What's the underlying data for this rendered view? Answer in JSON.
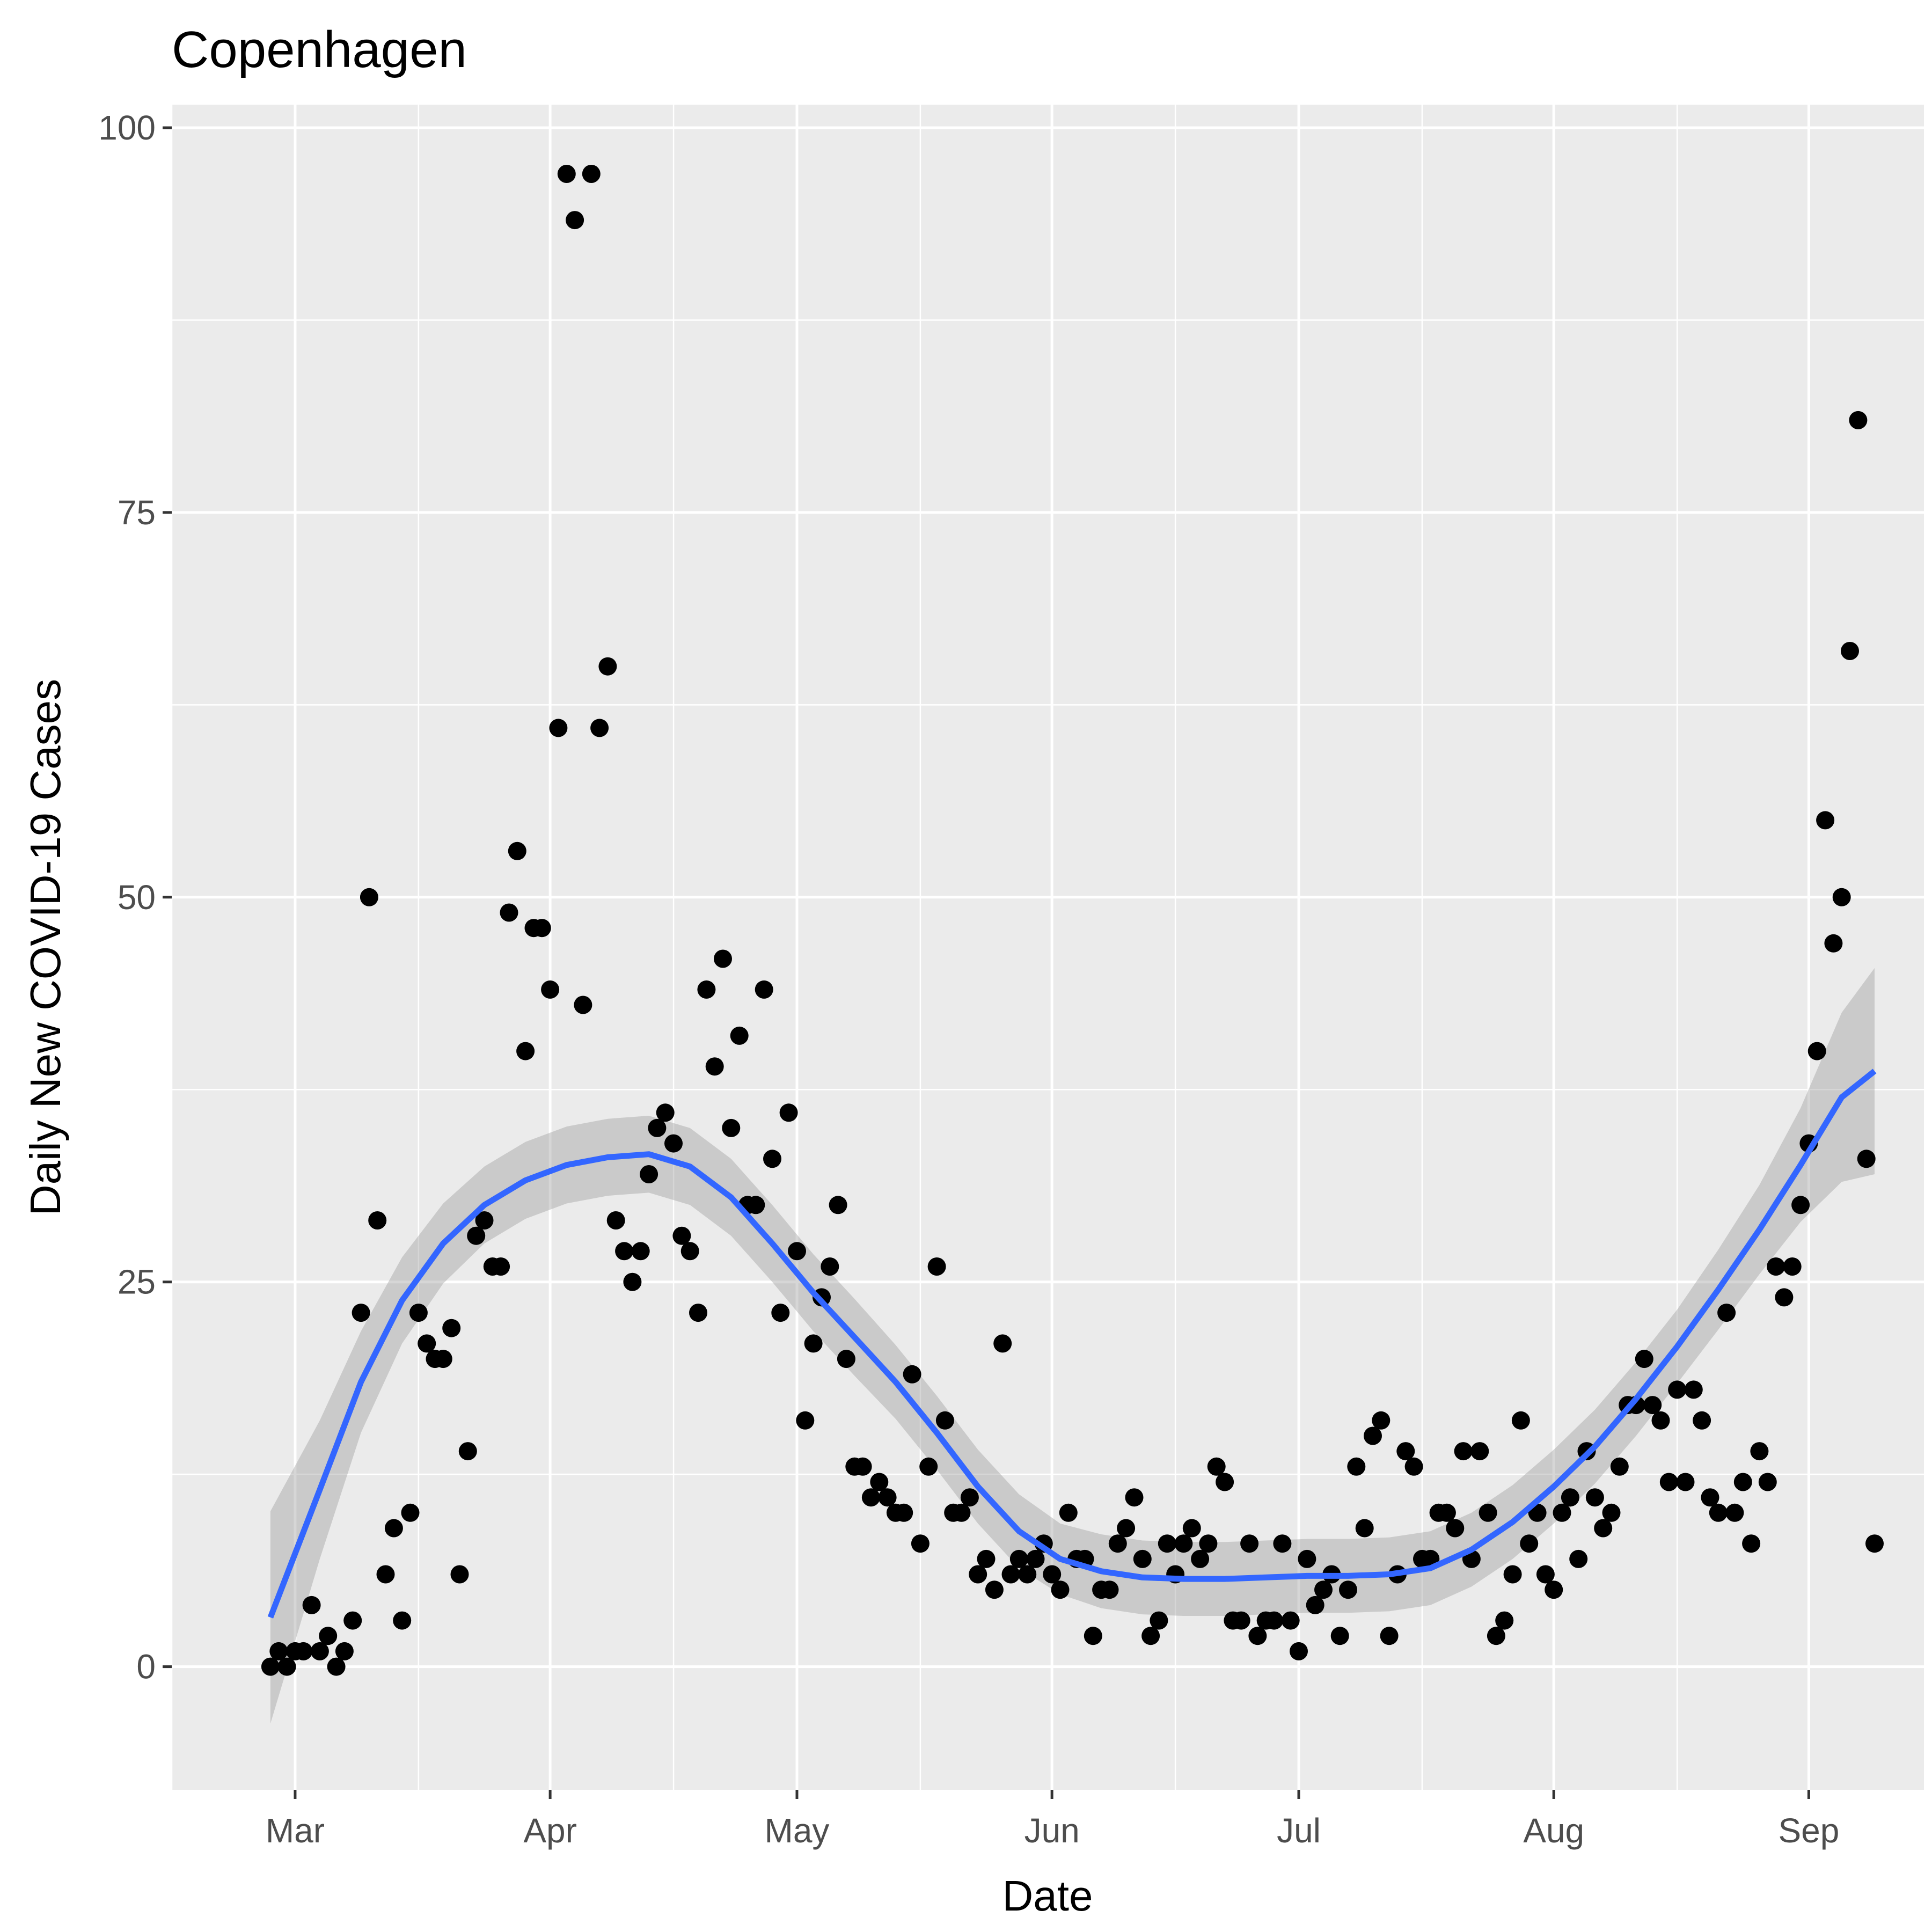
{
  "chart_data": {
    "type": "scatter",
    "title": "Copenhagen",
    "xlabel": "Date",
    "ylabel": "Daily New COVID-19 Cases",
    "grid": true,
    "legend": "none",
    "xlim": [
      "2020-02-15",
      "2020-09-15"
    ],
    "ylim": [
      -8,
      101.5
    ],
    "x_ticks": [
      {
        "date": "2020-03-01",
        "label": "Mar"
      },
      {
        "date": "2020-04-01",
        "label": "Apr"
      },
      {
        "date": "2020-05-01",
        "label": "May"
      },
      {
        "date": "2020-06-01",
        "label": "Jun"
      },
      {
        "date": "2020-07-01",
        "label": "Jul"
      },
      {
        "date": "2020-08-01",
        "label": "Aug"
      },
      {
        "date": "2020-09-01",
        "label": "Sep"
      }
    ],
    "x_minor_ticks": [
      "2020-02-15",
      "2020-03-16",
      "2020-04-16",
      "2020-05-16",
      "2020-06-16",
      "2020-07-16",
      "2020-08-16",
      "2020-09-16"
    ],
    "y_ticks": [
      {
        "value": 0,
        "label": "0"
      },
      {
        "value": 25,
        "label": "25"
      },
      {
        "value": 50,
        "label": "50"
      },
      {
        "value": 75,
        "label": "75"
      },
      {
        "value": 100,
        "label": "100"
      }
    ],
    "y_minor_ticks": [
      12.5,
      37.5,
      62.5,
      87.5
    ],
    "colors": {
      "points": "#000000",
      "smooth": "#3366ff",
      "ribbon": "#999999",
      "panel": "#ebebeb",
      "grid": "#ffffff"
    },
    "points": [
      [
        "2020-02-27",
        0
      ],
      [
        "2020-02-28",
        1
      ],
      [
        "2020-02-29",
        0
      ],
      [
        "2020-03-01",
        1
      ],
      [
        "2020-03-02",
        1
      ],
      [
        "2020-03-03",
        4
      ],
      [
        "2020-03-04",
        1
      ],
      [
        "2020-03-05",
        2
      ],
      [
        "2020-03-06",
        0
      ],
      [
        "2020-03-07",
        1
      ],
      [
        "2020-03-08",
        3
      ],
      [
        "2020-03-09",
        23
      ],
      [
        "2020-03-10",
        50
      ],
      [
        "2020-03-11",
        29
      ],
      [
        "2020-03-12",
        6
      ],
      [
        "2020-03-13",
        9
      ],
      [
        "2020-03-14",
        3
      ],
      [
        "2020-03-15",
        10
      ],
      [
        "2020-03-16",
        23
      ],
      [
        "2020-03-17",
        21
      ],
      [
        "2020-03-18",
        20
      ],
      [
        "2020-03-19",
        20
      ],
      [
        "2020-03-20",
        22
      ],
      [
        "2020-03-21",
        6
      ],
      [
        "2020-03-22",
        14
      ],
      [
        "2020-03-23",
        28
      ],
      [
        "2020-03-24",
        29
      ],
      [
        "2020-03-25",
        26
      ],
      [
        "2020-03-26",
        26
      ],
      [
        "2020-03-27",
        49
      ],
      [
        "2020-03-28",
        53
      ],
      [
        "2020-03-29",
        40
      ],
      [
        "2020-03-30",
        48
      ],
      [
        "2020-03-31",
        48
      ],
      [
        "2020-04-01",
        44
      ],
      [
        "2020-04-02",
        61
      ],
      [
        "2020-04-03",
        97
      ],
      [
        "2020-04-04",
        94
      ],
      [
        "2020-04-05",
        43
      ],
      [
        "2020-04-06",
        97
      ],
      [
        "2020-04-07",
        61
      ],
      [
        "2020-04-08",
        65
      ],
      [
        "2020-04-09",
        29
      ],
      [
        "2020-04-10",
        27
      ],
      [
        "2020-04-11",
        25
      ],
      [
        "2020-04-12",
        27
      ],
      [
        "2020-04-13",
        32
      ],
      [
        "2020-04-14",
        35
      ],
      [
        "2020-04-15",
        36
      ],
      [
        "2020-04-16",
        34
      ],
      [
        "2020-04-17",
        28
      ],
      [
        "2020-04-18",
        27
      ],
      [
        "2020-04-19",
        23
      ],
      [
        "2020-04-20",
        44
      ],
      [
        "2020-04-21",
        39
      ],
      [
        "2020-04-22",
        46
      ],
      [
        "2020-04-23",
        35
      ],
      [
        "2020-04-24",
        41
      ],
      [
        "2020-04-25",
        30
      ],
      [
        "2020-04-26",
        30
      ],
      [
        "2020-04-27",
        44
      ],
      [
        "2020-04-28",
        33
      ],
      [
        "2020-04-29",
        23
      ],
      [
        "2020-04-30",
        36
      ],
      [
        "2020-05-01",
        27
      ],
      [
        "2020-05-02",
        16
      ],
      [
        "2020-05-03",
        21
      ],
      [
        "2020-05-04",
        24
      ],
      [
        "2020-05-05",
        26
      ],
      [
        "2020-05-06",
        30
      ],
      [
        "2020-05-07",
        20
      ],
      [
        "2020-05-08",
        13
      ],
      [
        "2020-05-09",
        13
      ],
      [
        "2020-05-10",
        11
      ],
      [
        "2020-05-11",
        12
      ],
      [
        "2020-05-12",
        11
      ],
      [
        "2020-05-13",
        10
      ],
      [
        "2020-05-14",
        10
      ],
      [
        "2020-05-15",
        19
      ],
      [
        "2020-05-16",
        8
      ],
      [
        "2020-05-17",
        13
      ],
      [
        "2020-05-18",
        26
      ],
      [
        "2020-05-19",
        16
      ],
      [
        "2020-05-20",
        10
      ],
      [
        "2020-05-21",
        10
      ],
      [
        "2020-05-22",
        11
      ],
      [
        "2020-05-23",
        6
      ],
      [
        "2020-05-24",
        7
      ],
      [
        "2020-05-25",
        5
      ],
      [
        "2020-05-26",
        21
      ],
      [
        "2020-05-27",
        6
      ],
      [
        "2020-05-28",
        7
      ],
      [
        "2020-05-29",
        6
      ],
      [
        "2020-05-30",
        7
      ],
      [
        "2020-05-31",
        8
      ],
      [
        "2020-06-01",
        6
      ],
      [
        "2020-06-02",
        5
      ],
      [
        "2020-06-03",
        10
      ],
      [
        "2020-06-04",
        7
      ],
      [
        "2020-06-05",
        7
      ],
      [
        "2020-06-06",
        2
      ],
      [
        "2020-06-07",
        5
      ],
      [
        "2020-06-08",
        5
      ],
      [
        "2020-06-09",
        8
      ],
      [
        "2020-06-10",
        9
      ],
      [
        "2020-06-11",
        11
      ],
      [
        "2020-06-12",
        7
      ],
      [
        "2020-06-13",
        2
      ],
      [
        "2020-06-14",
        3
      ],
      [
        "2020-06-15",
        8
      ],
      [
        "2020-06-16",
        6
      ],
      [
        "2020-06-17",
        8
      ],
      [
        "2020-06-18",
        9
      ],
      [
        "2020-06-19",
        7
      ],
      [
        "2020-06-20",
        8
      ],
      [
        "2020-06-21",
        13
      ],
      [
        "2020-06-22",
        12
      ],
      [
        "2020-06-23",
        3
      ],
      [
        "2020-06-24",
        3
      ],
      [
        "2020-06-25",
        8
      ],
      [
        "2020-06-26",
        2
      ],
      [
        "2020-06-27",
        3
      ],
      [
        "2020-06-28",
        3
      ],
      [
        "2020-06-29",
        8
      ],
      [
        "2020-06-30",
        3
      ],
      [
        "2020-07-01",
        1
      ],
      [
        "2020-07-02",
        7
      ],
      [
        "2020-07-03",
        4
      ],
      [
        "2020-07-04",
        5
      ],
      [
        "2020-07-05",
        6
      ],
      [
        "2020-07-06",
        2
      ],
      [
        "2020-07-07",
        5
      ],
      [
        "2020-07-08",
        13
      ],
      [
        "2020-07-09",
        9
      ],
      [
        "2020-07-10",
        15
      ],
      [
        "2020-07-11",
        16
      ],
      [
        "2020-07-12",
        2
      ],
      [
        "2020-07-13",
        6
      ],
      [
        "2020-07-14",
        14
      ],
      [
        "2020-07-15",
        13
      ],
      [
        "2020-07-16",
        7
      ],
      [
        "2020-07-17",
        7
      ],
      [
        "2020-07-18",
        10
      ],
      [
        "2020-07-19",
        10
      ],
      [
        "2020-07-20",
        9
      ],
      [
        "2020-07-21",
        14
      ],
      [
        "2020-07-22",
        7
      ],
      [
        "2020-07-23",
        14
      ],
      [
        "2020-07-24",
        10
      ],
      [
        "2020-07-25",
        2
      ],
      [
        "2020-07-26",
        3
      ],
      [
        "2020-07-27",
        6
      ],
      [
        "2020-07-28",
        16
      ],
      [
        "2020-07-29",
        8
      ],
      [
        "2020-07-30",
        10
      ],
      [
        "2020-07-31",
        6
      ],
      [
        "2020-08-01",
        5
      ],
      [
        "2020-08-02",
        10
      ],
      [
        "2020-08-03",
        11
      ],
      [
        "2020-08-04",
        7
      ],
      [
        "2020-08-05",
        14
      ],
      [
        "2020-08-06",
        11
      ],
      [
        "2020-08-07",
        9
      ],
      [
        "2020-08-08",
        10
      ],
      [
        "2020-08-09",
        13
      ],
      [
        "2020-08-10",
        17
      ],
      [
        "2020-08-11",
        17
      ],
      [
        "2020-08-12",
        20
      ],
      [
        "2020-08-13",
        17
      ],
      [
        "2020-08-14",
        16
      ],
      [
        "2020-08-15",
        12
      ],
      [
        "2020-08-16",
        18
      ],
      [
        "2020-08-17",
        12
      ],
      [
        "2020-08-18",
        18
      ],
      [
        "2020-08-19",
        16
      ],
      [
        "2020-08-20",
        11
      ],
      [
        "2020-08-21",
        10
      ],
      [
        "2020-08-22",
        23
      ],
      [
        "2020-08-23",
        10
      ],
      [
        "2020-08-24",
        12
      ],
      [
        "2020-08-25",
        8
      ],
      [
        "2020-08-26",
        14
      ],
      [
        "2020-08-27",
        12
      ],
      [
        "2020-08-28",
        26
      ],
      [
        "2020-08-29",
        24
      ],
      [
        "2020-08-30",
        26
      ],
      [
        "2020-08-31",
        30
      ],
      [
        "2020-09-01",
        34
      ],
      [
        "2020-09-02",
        40
      ],
      [
        "2020-09-03",
        55
      ],
      [
        "2020-09-04",
        47
      ],
      [
        "2020-09-05",
        50
      ],
      [
        "2020-09-06",
        66
      ],
      [
        "2020-09-07",
        81
      ],
      [
        "2020-09-08",
        33
      ],
      [
        "2020-09-09",
        8
      ]
    ],
    "smooth": [
      [
        "2020-02-27",
        3.2,
        -3.7,
        10.1
      ],
      [
        "2020-03-04",
        11.5,
        7.0,
        16.0
      ],
      [
        "2020-03-09",
        18.5,
        15.2,
        21.8
      ],
      [
        "2020-03-14",
        23.8,
        21.0,
        26.6
      ],
      [
        "2020-03-19",
        27.5,
        24.9,
        30.1
      ],
      [
        "2020-03-24",
        30.0,
        27.5,
        32.5
      ],
      [
        "2020-03-29",
        31.6,
        29.1,
        34.1
      ],
      [
        "2020-04-03",
        32.6,
        30.1,
        35.1
      ],
      [
        "2020-04-08",
        33.1,
        30.6,
        35.6
      ],
      [
        "2020-04-13",
        33.3,
        30.8,
        35.8
      ],
      [
        "2020-04-18",
        32.5,
        30.0,
        35.0
      ],
      [
        "2020-04-23",
        30.5,
        28.0,
        33.0
      ],
      [
        "2020-04-28",
        27.5,
        25.0,
        30.0
      ],
      [
        "2020-05-03",
        24.3,
        21.8,
        26.8
      ],
      [
        "2020-05-08",
        21.4,
        18.9,
        23.9
      ],
      [
        "2020-05-13",
        18.5,
        16.1,
        20.9
      ],
      [
        "2020-05-18",
        15.2,
        12.8,
        17.6
      ],
      [
        "2020-05-23",
        11.7,
        9.3,
        14.1
      ],
      [
        "2020-05-28",
        8.8,
        6.4,
        11.2
      ],
      [
        "2020-06-02",
        7.0,
        4.7,
        9.3
      ],
      [
        "2020-06-07",
        6.2,
        3.8,
        8.6
      ],
      [
        "2020-06-12",
        5.8,
        3.4,
        8.2
      ],
      [
        "2020-06-17",
        5.7,
        3.3,
        8.1
      ],
      [
        "2020-06-22",
        5.7,
        3.3,
        8.1
      ],
      [
        "2020-06-27",
        5.8,
        3.4,
        8.2
      ],
      [
        "2020-07-02",
        5.9,
        3.5,
        8.3
      ],
      [
        "2020-07-07",
        5.9,
        3.5,
        8.3
      ],
      [
        "2020-07-12",
        6.0,
        3.6,
        8.4
      ],
      [
        "2020-07-17",
        6.4,
        4.0,
        8.8
      ],
      [
        "2020-07-22",
        7.6,
        5.2,
        10.0
      ],
      [
        "2020-07-27",
        9.4,
        7.0,
        11.8
      ],
      [
        "2020-08-01",
        11.7,
        9.3,
        14.1
      ],
      [
        "2020-08-06",
        14.3,
        11.9,
        16.7
      ],
      [
        "2020-08-11",
        17.4,
        15.0,
        19.8
      ],
      [
        "2020-08-16",
        20.8,
        18.4,
        23.2
      ],
      [
        "2020-08-21",
        24.5,
        21.9,
        27.1
      ],
      [
        "2020-08-26",
        28.4,
        25.5,
        31.3
      ],
      [
        "2020-08-31",
        32.6,
        28.9,
        36.3
      ],
      [
        "2020-09-05",
        37.0,
        31.5,
        42.5
      ],
      [
        "2020-09-09",
        38.7,
        32.0,
        45.4
      ]
    ]
  }
}
